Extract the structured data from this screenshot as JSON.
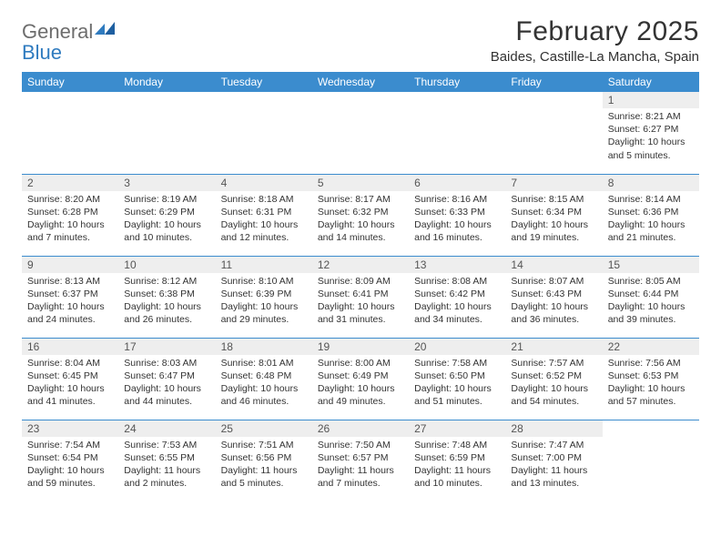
{
  "logo": {
    "word1": "General",
    "word2": "Blue"
  },
  "title": "February 2025",
  "location": "Baides, Castille-La Mancha, Spain",
  "colors": {
    "header_bg": "#3b8cce",
    "header_text": "#ffffff",
    "cell_border": "#3b8cce",
    "daynum_bg": "#eeeeee",
    "logo_gray": "#6d6d6d",
    "logo_blue": "#2f7bbf",
    "body_text": "#333333"
  },
  "typography": {
    "title_fontsize": 30,
    "location_fontsize": 15,
    "dayheader_fontsize": 12,
    "daynum_fontsize": 12,
    "body_fontsize": 10.5
  },
  "day_headers": [
    "Sunday",
    "Monday",
    "Tuesday",
    "Wednesday",
    "Thursday",
    "Friday",
    "Saturday"
  ],
  "weeks": [
    [
      {
        "empty": true
      },
      {
        "empty": true
      },
      {
        "empty": true
      },
      {
        "empty": true
      },
      {
        "empty": true
      },
      {
        "empty": true
      },
      {
        "day": "1",
        "sunrise": "Sunrise: 8:21 AM",
        "sunset": "Sunset: 6:27 PM",
        "daylight": "Daylight: 10 hours and 5 minutes."
      }
    ],
    [
      {
        "day": "2",
        "sunrise": "Sunrise: 8:20 AM",
        "sunset": "Sunset: 6:28 PM",
        "daylight": "Daylight: 10 hours and 7 minutes."
      },
      {
        "day": "3",
        "sunrise": "Sunrise: 8:19 AM",
        "sunset": "Sunset: 6:29 PM",
        "daylight": "Daylight: 10 hours and 10 minutes."
      },
      {
        "day": "4",
        "sunrise": "Sunrise: 8:18 AM",
        "sunset": "Sunset: 6:31 PM",
        "daylight": "Daylight: 10 hours and 12 minutes."
      },
      {
        "day": "5",
        "sunrise": "Sunrise: 8:17 AM",
        "sunset": "Sunset: 6:32 PM",
        "daylight": "Daylight: 10 hours and 14 minutes."
      },
      {
        "day": "6",
        "sunrise": "Sunrise: 8:16 AM",
        "sunset": "Sunset: 6:33 PM",
        "daylight": "Daylight: 10 hours and 16 minutes."
      },
      {
        "day": "7",
        "sunrise": "Sunrise: 8:15 AM",
        "sunset": "Sunset: 6:34 PM",
        "daylight": "Daylight: 10 hours and 19 minutes."
      },
      {
        "day": "8",
        "sunrise": "Sunrise: 8:14 AM",
        "sunset": "Sunset: 6:36 PM",
        "daylight": "Daylight: 10 hours and 21 minutes."
      }
    ],
    [
      {
        "day": "9",
        "sunrise": "Sunrise: 8:13 AM",
        "sunset": "Sunset: 6:37 PM",
        "daylight": "Daylight: 10 hours and 24 minutes."
      },
      {
        "day": "10",
        "sunrise": "Sunrise: 8:12 AM",
        "sunset": "Sunset: 6:38 PM",
        "daylight": "Daylight: 10 hours and 26 minutes."
      },
      {
        "day": "11",
        "sunrise": "Sunrise: 8:10 AM",
        "sunset": "Sunset: 6:39 PM",
        "daylight": "Daylight: 10 hours and 29 minutes."
      },
      {
        "day": "12",
        "sunrise": "Sunrise: 8:09 AM",
        "sunset": "Sunset: 6:41 PM",
        "daylight": "Daylight: 10 hours and 31 minutes."
      },
      {
        "day": "13",
        "sunrise": "Sunrise: 8:08 AM",
        "sunset": "Sunset: 6:42 PM",
        "daylight": "Daylight: 10 hours and 34 minutes."
      },
      {
        "day": "14",
        "sunrise": "Sunrise: 8:07 AM",
        "sunset": "Sunset: 6:43 PM",
        "daylight": "Daylight: 10 hours and 36 minutes."
      },
      {
        "day": "15",
        "sunrise": "Sunrise: 8:05 AM",
        "sunset": "Sunset: 6:44 PM",
        "daylight": "Daylight: 10 hours and 39 minutes."
      }
    ],
    [
      {
        "day": "16",
        "sunrise": "Sunrise: 8:04 AM",
        "sunset": "Sunset: 6:45 PM",
        "daylight": "Daylight: 10 hours and 41 minutes."
      },
      {
        "day": "17",
        "sunrise": "Sunrise: 8:03 AM",
        "sunset": "Sunset: 6:47 PM",
        "daylight": "Daylight: 10 hours and 44 minutes."
      },
      {
        "day": "18",
        "sunrise": "Sunrise: 8:01 AM",
        "sunset": "Sunset: 6:48 PM",
        "daylight": "Daylight: 10 hours and 46 minutes."
      },
      {
        "day": "19",
        "sunrise": "Sunrise: 8:00 AM",
        "sunset": "Sunset: 6:49 PM",
        "daylight": "Daylight: 10 hours and 49 minutes."
      },
      {
        "day": "20",
        "sunrise": "Sunrise: 7:58 AM",
        "sunset": "Sunset: 6:50 PM",
        "daylight": "Daylight: 10 hours and 51 minutes."
      },
      {
        "day": "21",
        "sunrise": "Sunrise: 7:57 AM",
        "sunset": "Sunset: 6:52 PM",
        "daylight": "Daylight: 10 hours and 54 minutes."
      },
      {
        "day": "22",
        "sunrise": "Sunrise: 7:56 AM",
        "sunset": "Sunset: 6:53 PM",
        "daylight": "Daylight: 10 hours and 57 minutes."
      }
    ],
    [
      {
        "day": "23",
        "sunrise": "Sunrise: 7:54 AM",
        "sunset": "Sunset: 6:54 PM",
        "daylight": "Daylight: 10 hours and 59 minutes."
      },
      {
        "day": "24",
        "sunrise": "Sunrise: 7:53 AM",
        "sunset": "Sunset: 6:55 PM",
        "daylight": "Daylight: 11 hours and 2 minutes."
      },
      {
        "day": "25",
        "sunrise": "Sunrise: 7:51 AM",
        "sunset": "Sunset: 6:56 PM",
        "daylight": "Daylight: 11 hours and 5 minutes."
      },
      {
        "day": "26",
        "sunrise": "Sunrise: 7:50 AM",
        "sunset": "Sunset: 6:57 PM",
        "daylight": "Daylight: 11 hours and 7 minutes."
      },
      {
        "day": "27",
        "sunrise": "Sunrise: 7:48 AM",
        "sunset": "Sunset: 6:59 PM",
        "daylight": "Daylight: 11 hours and 10 minutes."
      },
      {
        "day": "28",
        "sunrise": "Sunrise: 7:47 AM",
        "sunset": "Sunset: 7:00 PM",
        "daylight": "Daylight: 11 hours and 13 minutes."
      },
      {
        "empty": true
      }
    ]
  ]
}
